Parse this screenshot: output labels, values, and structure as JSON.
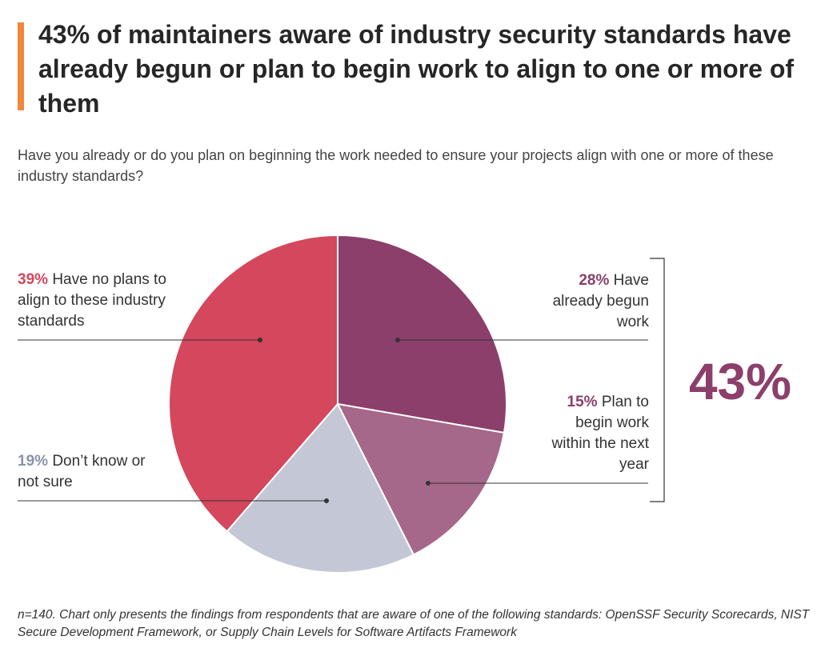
{
  "chart_data": {
    "type": "pie",
    "title": "43% of maintainers aware of industry security standards have already begun or plan to begin work to align to one or more of them",
    "subtitle": "Have you already or do you plan on beginning the work needed to ensure your projects align with one or more of these industry standards?",
    "categories": [
      "Have already begun work",
      "Plan to begin work within the next year",
      "Don’t know or not sure",
      "Have no plans to align to these industry standards"
    ],
    "values": [
      28,
      15,
      19,
      39
    ],
    "value_labels": [
      "28%",
      "15%",
      "19%",
      "39%"
    ],
    "colors": [
      "#8b3f6a",
      "#a5678a",
      "#c4c8d6",
      "#d4475c"
    ],
    "annotation": "43%",
    "footnote": "n=140. Chart only presents the findings from respondents that are aware of one of the following standards: OpenSSF Security Scorecards, NIST Secure Development Framework, or Supply Chain Levels for Software Artifacts Framework"
  }
}
